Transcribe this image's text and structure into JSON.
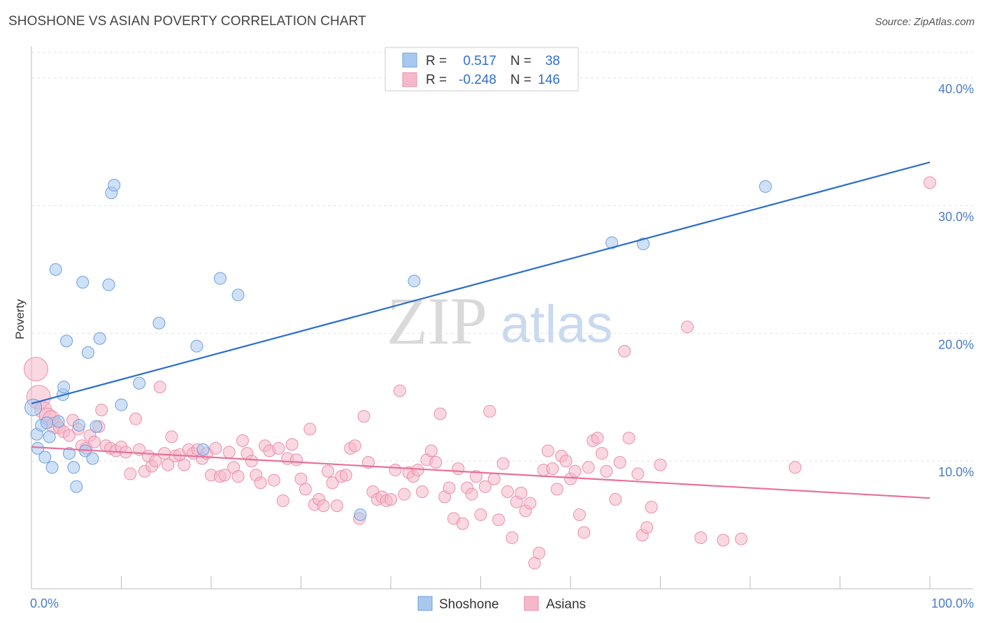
{
  "header": {
    "title": "SHOSHONE VS ASIAN POVERTY CORRELATION CHART",
    "source": "Source: ZipAtlas.com"
  },
  "watermark": {
    "zip": "ZIP",
    "atlas": "atlas"
  },
  "stats_box": {
    "rows": [
      {
        "r_label": "R =",
        "r_value": "0.517",
        "n_label": "N =",
        "n_value": "38",
        "color": "#a8c8f0"
      },
      {
        "r_label": "R =",
        "r_value": "-0.248",
        "n_label": "N =",
        "n_value": "146",
        "color": "#f5b8c8"
      }
    ]
  },
  "legend": {
    "items": [
      {
        "label": "Shoshone",
        "color": "#a8c8f0"
      },
      {
        "label": "Asians",
        "color": "#f5b8c8"
      }
    ]
  },
  "chart_data": {
    "type": "scatter",
    "title": "SHOSHONE VS ASIAN POVERTY CORRELATION CHART",
    "xlabel": "",
    "ylabel": "Poverty",
    "xlim": [
      0,
      100
    ],
    "ylim": [
      0,
      42
    ],
    "x_tick_labels": [
      "0.0%",
      "100.0%"
    ],
    "y_ticks": [
      10,
      20,
      30,
      40
    ],
    "y_tick_labels": [
      "10.0%",
      "20.0%",
      "30.0%",
      "40.0%"
    ],
    "grid": true,
    "series": [
      {
        "name": "Shoshone",
        "color": "#a8c8f0",
        "stroke": "#6f9fdc",
        "line_color": "#2a6dcc",
        "trend": [
          [
            0,
            14.5
          ],
          [
            100,
            33.4
          ]
        ],
        "points": [
          [
            0.2,
            14.2
          ],
          [
            0.6,
            12.1
          ],
          [
            0.7,
            11.0
          ],
          [
            1.1,
            12.8
          ],
          [
            1.5,
            10.3
          ],
          [
            1.7,
            13.0
          ],
          [
            2.0,
            11.9
          ],
          [
            2.3,
            9.5
          ],
          [
            2.7,
            25.0
          ],
          [
            3.0,
            13.1
          ],
          [
            3.5,
            15.2
          ],
          [
            3.6,
            15.8
          ],
          [
            3.9,
            19.4
          ],
          [
            4.2,
            10.6
          ],
          [
            4.7,
            9.5
          ],
          [
            5.0,
            8.0
          ],
          [
            5.3,
            12.8
          ],
          [
            5.7,
            24.0
          ],
          [
            6.0,
            10.8
          ],
          [
            6.3,
            18.5
          ],
          [
            6.8,
            10.2
          ],
          [
            7.2,
            12.7
          ],
          [
            7.6,
            19.6
          ],
          [
            8.6,
            23.8
          ],
          [
            8.9,
            31.0
          ],
          [
            9.2,
            31.6
          ],
          [
            10.0,
            14.4
          ],
          [
            12.0,
            16.1
          ],
          [
            14.2,
            20.8
          ],
          [
            18.4,
            19.0
          ],
          [
            19.1,
            10.9
          ],
          [
            21.0,
            24.3
          ],
          [
            23.0,
            23.0
          ],
          [
            36.6,
            5.8
          ],
          [
            42.6,
            24.1
          ],
          [
            64.6,
            27.1
          ],
          [
            68.1,
            27.0
          ],
          [
            81.7,
            31.5
          ]
        ]
      },
      {
        "name": "Asians",
        "color": "#f5b8c8",
        "stroke": "#eb8fab",
        "line_color": "#e8709a",
        "trend": [
          [
            0,
            11.1
          ],
          [
            100,
            7.1
          ]
        ],
        "points": [
          [
            0.5,
            17.2
          ],
          [
            0.8,
            15.0
          ],
          [
            1.3,
            14.0
          ],
          [
            1.8,
            13.5
          ],
          [
            2.2,
            13.3
          ],
          [
            2.6,
            12.8
          ],
          [
            3.1,
            12.6
          ],
          [
            3.6,
            12.3
          ],
          [
            4.2,
            12.0
          ],
          [
            4.6,
            13.2
          ],
          [
            5.2,
            12.5
          ],
          [
            5.6,
            11.2
          ],
          [
            6.1,
            11.0
          ],
          [
            6.5,
            12.0
          ],
          [
            7.0,
            11.5
          ],
          [
            7.5,
            12.7
          ],
          [
            7.8,
            14.0
          ],
          [
            8.3,
            11.2
          ],
          [
            8.8,
            11.0
          ],
          [
            9.4,
            10.8
          ],
          [
            10.0,
            11.1
          ],
          [
            10.5,
            10.7
          ],
          [
            11.0,
            9.0
          ],
          [
            11.6,
            13.3
          ],
          [
            12.0,
            10.9
          ],
          [
            12.6,
            9.2
          ],
          [
            13.0,
            10.4
          ],
          [
            13.4,
            9.6
          ],
          [
            13.8,
            10.0
          ],
          [
            14.3,
            15.8
          ],
          [
            14.8,
            10.6
          ],
          [
            15.2,
            9.7
          ],
          [
            15.6,
            11.9
          ],
          [
            16.0,
            10.4
          ],
          [
            16.5,
            10.5
          ],
          [
            17.0,
            9.7
          ],
          [
            17.5,
            10.9
          ],
          [
            18.0,
            10.6
          ],
          [
            18.5,
            10.9
          ],
          [
            19.0,
            10.2
          ],
          [
            19.5,
            10.6
          ],
          [
            20.0,
            8.9
          ],
          [
            20.5,
            11.0
          ],
          [
            21.0,
            8.8
          ],
          [
            21.5,
            8.9
          ],
          [
            22.0,
            10.7
          ],
          [
            22.5,
            9.5
          ],
          [
            23.0,
            8.8
          ],
          [
            23.5,
            11.6
          ],
          [
            24.0,
            10.6
          ],
          [
            24.5,
            10.0
          ],
          [
            25.0,
            8.9
          ],
          [
            25.5,
            8.3
          ],
          [
            26.0,
            11.2
          ],
          [
            26.5,
            10.8
          ],
          [
            27.0,
            8.5
          ],
          [
            27.5,
            11.0
          ],
          [
            28.0,
            6.9
          ],
          [
            28.5,
            10.2
          ],
          [
            29.0,
            11.3
          ],
          [
            29.5,
            10.1
          ],
          [
            30.0,
            8.6
          ],
          [
            30.5,
            7.8
          ],
          [
            31.0,
            12.5
          ],
          [
            31.5,
            6.6
          ],
          [
            32.0,
            7.0
          ],
          [
            32.5,
            6.5
          ],
          [
            33.0,
            9.2
          ],
          [
            33.5,
            8.3
          ],
          [
            34.0,
            6.5
          ],
          [
            34.5,
            8.8
          ],
          [
            35.0,
            8.9
          ],
          [
            35.5,
            11.0
          ],
          [
            36.0,
            11.2
          ],
          [
            36.5,
            5.5
          ],
          [
            37.0,
            13.5
          ],
          [
            37.5,
            9.9
          ],
          [
            38.0,
            7.6
          ],
          [
            38.5,
            7.0
          ],
          [
            39.0,
            7.2
          ],
          [
            39.5,
            6.9
          ],
          [
            40.0,
            7.0
          ],
          [
            40.5,
            9.3
          ],
          [
            41.0,
            15.5
          ],
          [
            41.5,
            7.4
          ],
          [
            42.0,
            9.1
          ],
          [
            42.5,
            8.8
          ],
          [
            43.0,
            9.3
          ],
          [
            43.5,
            7.6
          ],
          [
            44.0,
            10.1
          ],
          [
            44.5,
            10.8
          ],
          [
            45.0,
            9.9
          ],
          [
            45.5,
            13.7
          ],
          [
            46.0,
            7.2
          ],
          [
            46.5,
            7.9
          ],
          [
            47.0,
            5.5
          ],
          [
            47.5,
            9.4
          ],
          [
            48.0,
            5.1
          ],
          [
            48.5,
            7.9
          ],
          [
            49.0,
            7.4
          ],
          [
            49.5,
            8.8
          ],
          [
            50.0,
            5.8
          ],
          [
            50.5,
            8.0
          ],
          [
            51.0,
            13.9
          ],
          [
            51.5,
            8.6
          ],
          [
            52.0,
            5.4
          ],
          [
            52.5,
            9.8
          ],
          [
            53.0,
            7.6
          ],
          [
            53.5,
            4.0
          ],
          [
            54.0,
            6.8
          ],
          [
            54.5,
            7.5
          ],
          [
            55.0,
            6.1
          ],
          [
            55.5,
            6.7
          ],
          [
            56.0,
            2.0
          ],
          [
            56.5,
            2.8
          ],
          [
            57.0,
            9.3
          ],
          [
            57.5,
            10.8
          ],
          [
            58.0,
            9.4
          ],
          [
            58.5,
            7.8
          ],
          [
            59.0,
            10.4
          ],
          [
            59.5,
            10.0
          ],
          [
            60.0,
            8.6
          ],
          [
            60.5,
            9.2
          ],
          [
            61.0,
            5.8
          ],
          [
            61.5,
            4.4
          ],
          [
            62.0,
            9.5
          ],
          [
            62.5,
            11.6
          ],
          [
            63.0,
            11.8
          ],
          [
            63.5,
            10.6
          ],
          [
            64.0,
            9.2
          ],
          [
            65.0,
            7.0
          ],
          [
            65.5,
            9.9
          ],
          [
            66.0,
            18.6
          ],
          [
            66.5,
            11.8
          ],
          [
            67.5,
            9.0
          ],
          [
            68.0,
            4.2
          ],
          [
            68.5,
            4.8
          ],
          [
            69.0,
            6.4
          ],
          [
            70.0,
            9.7
          ],
          [
            73.0,
            20.5
          ],
          [
            74.5,
            4.0
          ],
          [
            77.0,
            3.8
          ],
          [
            79.0,
            3.9
          ],
          [
            85.0,
            9.5
          ],
          [
            100.0,
            31.8
          ]
        ]
      }
    ]
  }
}
